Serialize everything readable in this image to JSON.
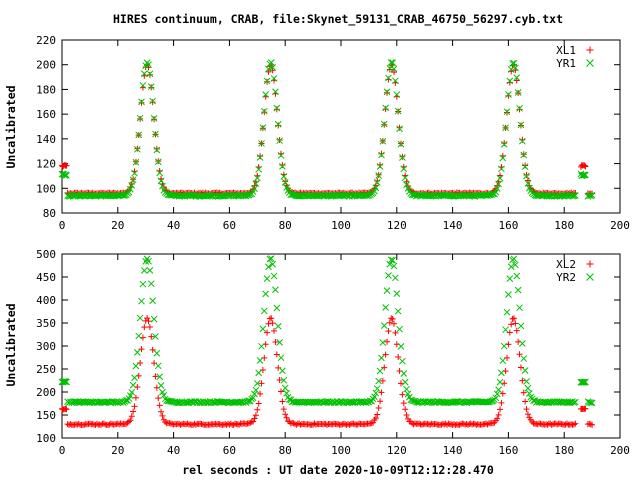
{
  "title": "HIRES continuum, CRAB, file:Skynet_59131_CRAB_46750_56297.cyb.txt",
  "xlabel": "rel seconds : UT date 2020-10-09T12:12:28.470",
  "chart_data": [
    {
      "type": "scatter",
      "ylabel": "Uncalibrated",
      "xlim": [
        0,
        200
      ],
      "ylim": [
        80,
        220
      ],
      "xticks": [
        0,
        20,
        40,
        60,
        80,
        100,
        120,
        140,
        160,
        180,
        200
      ],
      "yticks": [
        80,
        100,
        120,
        140,
        160,
        180,
        200,
        220
      ],
      "legend_position": "top-right",
      "x_range": [
        0,
        190
      ],
      "peak_centers": [
        30.5,
        74.8,
        118.2,
        161.8
      ],
      "peak_width_sigma": 2.4,
      "calibration_x": [
        0,
        1,
        186,
        187
      ],
      "series": [
        {
          "name": "XL1",
          "marker": "+",
          "color": "#ff0000",
          "baseline": 96,
          "peak": 200,
          "calibration_level": 118
        },
        {
          "name": "YR1",
          "marker": "x",
          "color": "#00c000",
          "baseline": 94,
          "peak": 202,
          "calibration_level": 111
        }
      ]
    },
    {
      "type": "scatter",
      "ylabel": "Uncalibrated",
      "xlim": [
        0,
        200
      ],
      "ylim": [
        100,
        500
      ],
      "xticks": [
        0,
        20,
        40,
        60,
        80,
        100,
        120,
        140,
        160,
        180,
        200
      ],
      "yticks": [
        100,
        150,
        200,
        250,
        300,
        350,
        400,
        450,
        500
      ],
      "legend_position": "top-right",
      "x_range": [
        0,
        190
      ],
      "peak_centers": [
        30.5,
        74.8,
        118.2,
        161.8
      ],
      "peak_width_sigma": 2.4,
      "calibration_x": [
        0,
        1,
        186,
        187
      ],
      "series": [
        {
          "name": "XL2",
          "marker": "+",
          "color": "#ff0000",
          "baseline": 130,
          "peak": 360,
          "calibration_level": 163
        },
        {
          "name": "YR2",
          "marker": "x",
          "color": "#00c000",
          "baseline": 178,
          "peak": 490,
          "calibration_level": 222
        }
      ]
    }
  ]
}
